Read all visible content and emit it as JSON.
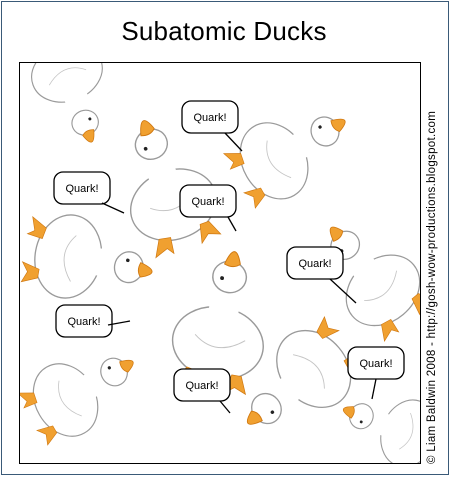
{
  "comic": {
    "title": "Subatomic Ducks",
    "credit": "© Liam Baldwin 2008 - http://gosh-wow-productions.blogspot.com",
    "speech": [
      "Quark!",
      "Quark!",
      "Quark!",
      "Quark!",
      "Quark!",
      "Quark!",
      "Quark!"
    ]
  },
  "colors": {
    "frame": "#3a5a78",
    "beak": "#f0a030",
    "beak_dark": "#d07810",
    "duck_outline": "#9a9a9a"
  }
}
